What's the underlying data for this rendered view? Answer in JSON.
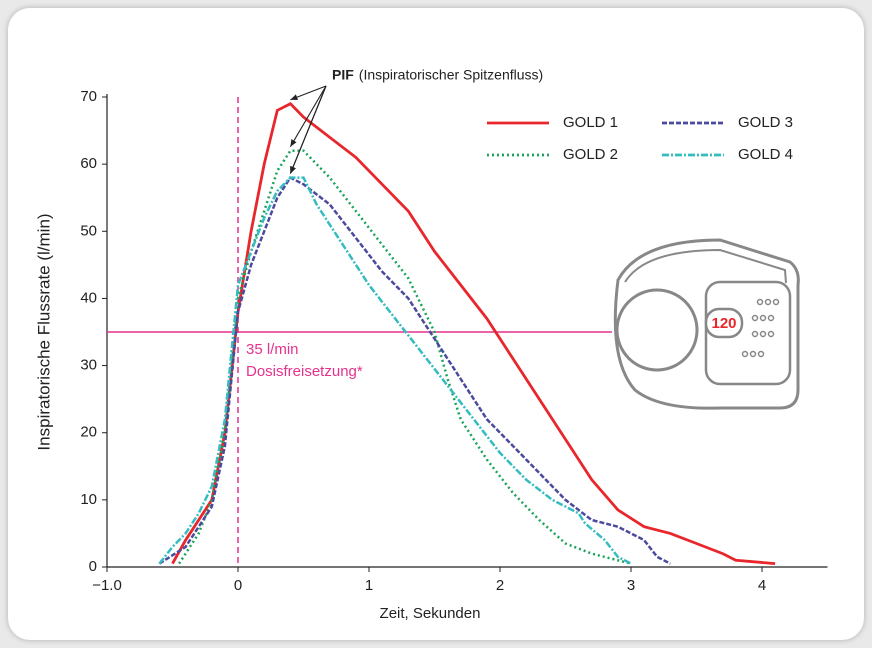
{
  "chart_data": {
    "type": "line",
    "x_label": "Zeit, Sekunden",
    "y_label": "Inspiratorische Flussrate (l/min)",
    "xlim": [
      -1,
      4.5
    ],
    "ylim": [
      0,
      70
    ],
    "xticks": [
      {
        "value": -1,
        "label": "−1.0"
      },
      0,
      1,
      2,
      3,
      4
    ],
    "yticks": [
      0,
      10,
      20,
      30,
      40,
      50,
      60,
      70
    ],
    "legend": "top-right",
    "peak_label": "PIF",
    "peak_note": "(Inspiratorischer Spitzenfluss)",
    "vline": 0,
    "threshold": {
      "value": 35,
      "labels": [
        "35 l/min",
        "Dosisfreisetzung*"
      ]
    },
    "device_counter": "120",
    "series": [
      {
        "name": "GOLD 1",
        "color": "#e8262b",
        "dash": "",
        "x": [
          -0.5,
          -0.4,
          -0.3,
          -0.2,
          -0.1,
          0,
          0.1,
          0.2,
          0.3,
          0.4,
          0.5,
          0.7,
          0.9,
          1.1,
          1.3,
          1.5,
          1.7,
          1.9,
          2.1,
          2.3,
          2.5,
          2.7,
          2.9,
          3.1,
          3.3,
          3.5,
          3.7,
          3.8,
          4.1
        ],
        "values": [
          0.5,
          4,
          7,
          10,
          20,
          38,
          50,
          60,
          68,
          69,
          67,
          64,
          61,
          57,
          53,
          47,
          42,
          37,
          31,
          25,
          19,
          13,
          8.5,
          6,
          5,
          3.5,
          2,
          1,
          0.5
        ]
      },
      {
        "name": "GOLD 2",
        "color": "#1aa35a",
        "dash": "2 3",
        "x": [
          -0.45,
          -0.3,
          -0.2,
          -0.1,
          0,
          0.1,
          0.2,
          0.3,
          0.4,
          0.5,
          0.7,
          0.9,
          1.1,
          1.3,
          1.5,
          1.6,
          1.7,
          1.9,
          2.1,
          2.3,
          2.5,
          2.7,
          2.9,
          3.0
        ],
        "values": [
          0.5,
          5,
          10,
          20,
          40,
          47,
          53,
          59,
          62,
          62,
          58,
          53,
          48,
          43,
          35,
          28,
          22,
          16,
          11,
          7,
          3.5,
          2,
          1,
          0.5
        ]
      },
      {
        "name": "GOLD 3",
        "color": "#4b4a9e",
        "dash": "5 2",
        "x": [
          -0.6,
          -0.4,
          -0.2,
          -0.1,
          0,
          0.1,
          0.2,
          0.3,
          0.4,
          0.5,
          0.7,
          0.9,
          1.1,
          1.3,
          1.5,
          1.7,
          1.9,
          2.1,
          2.3,
          2.5,
          2.7,
          2.9,
          3.1,
          3.2,
          3.3
        ],
        "values": [
          0.5,
          3,
          9,
          18,
          38,
          45,
          50,
          55,
          58,
          57,
          54,
          49,
          44,
          40,
          34,
          28,
          22,
          18,
          14,
          10,
          7,
          6,
          4,
          1.5,
          0.5
        ]
      },
      {
        "name": "GOLD 4",
        "color": "#35bcc0",
        "dash": "7 2 2 2",
        "x": [
          -0.6,
          -0.5,
          -0.4,
          -0.3,
          -0.2,
          -0.1,
          0,
          0.1,
          0.2,
          0.3,
          0.4,
          0.5,
          0.6,
          0.8,
          1.0,
          1.2,
          1.4,
          1.6,
          1.8,
          2.0,
          2.2,
          2.4,
          2.6,
          2.65,
          2.8,
          2.9,
          3.0
        ],
        "values": [
          0.5,
          3,
          5,
          8,
          12,
          22,
          42,
          47,
          52,
          56,
          58,
          58,
          54,
          48,
          42,
          37,
          32,
          27,
          22,
          17,
          13,
          10,
          8,
          6.5,
          4,
          1.5,
          0.5
        ]
      }
    ]
  }
}
